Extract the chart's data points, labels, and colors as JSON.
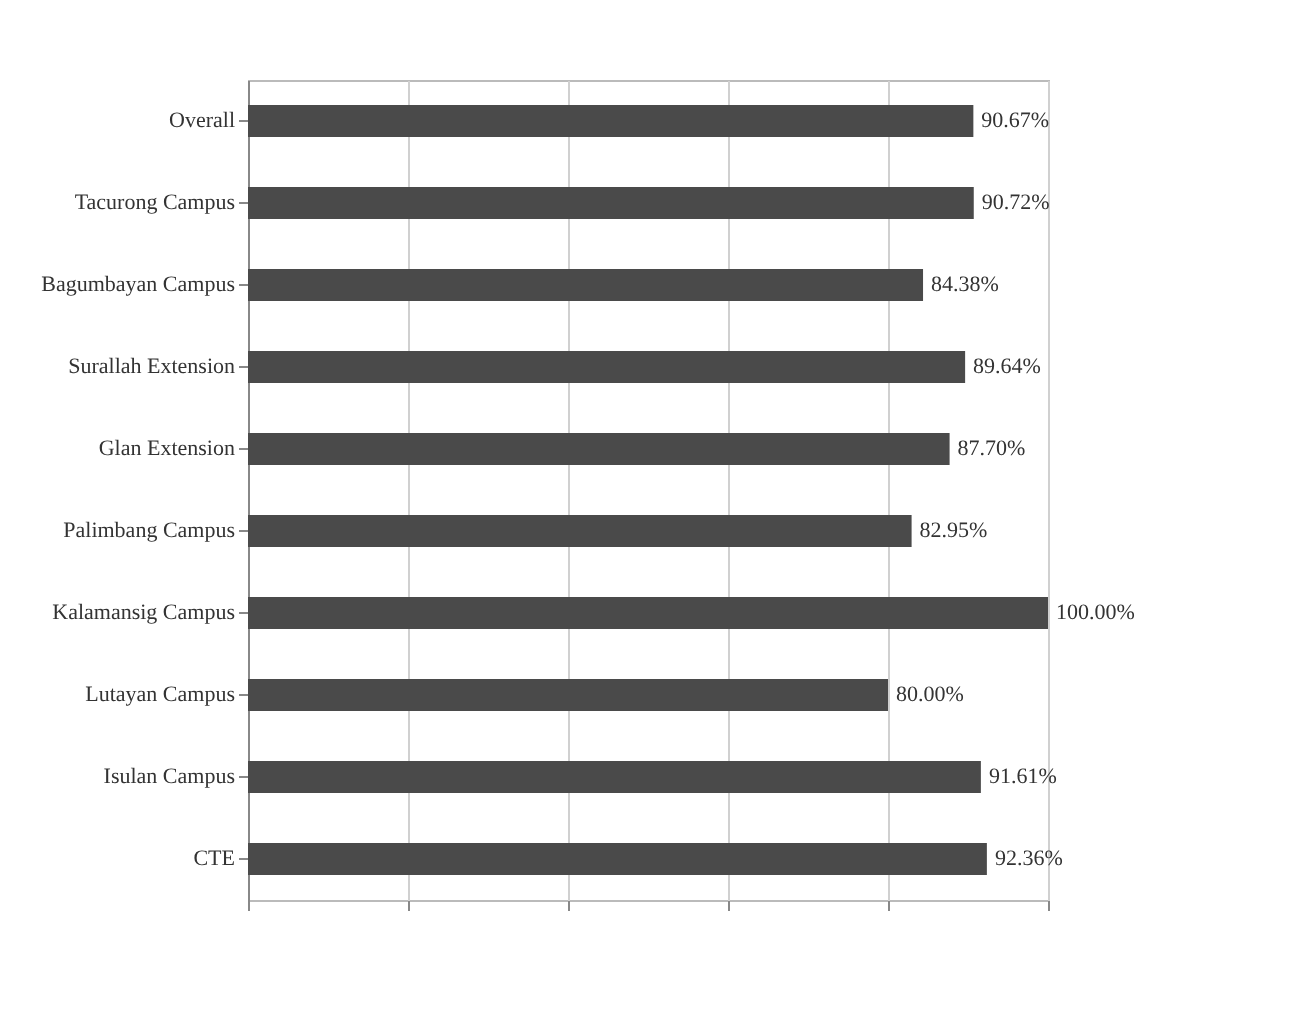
{
  "chart_data": {
    "type": "bar",
    "orientation": "horizontal",
    "categories": [
      "Overall",
      "Tacurong Campus",
      "Bagumbayan Campus",
      "Surallah Extension",
      "Glan Extension",
      "Palimbang Campus",
      "Kalamansig Campus",
      "Lutayan Campus",
      "Isulan Campus",
      "CTE"
    ],
    "values": [
      90.67,
      90.72,
      84.38,
      89.64,
      87.7,
      82.95,
      100.0,
      80.0,
      91.61,
      92.36
    ],
    "value_labels": [
      "90.67%",
      "90.72%",
      "84.38%",
      "89.64%",
      "87.70%",
      "82.95%",
      "100.00%",
      "80.00%",
      "91.61%",
      "92.36%"
    ],
    "color": "#4a4a4a",
    "xlim": [
      0,
      100
    ],
    "xticks": [
      {
        "value": 0,
        "label": null
      },
      {
        "value": 20,
        "label": null
      },
      {
        "value": 40,
        "label": null
      },
      {
        "value": 60,
        "label": null
      },
      {
        "value": 80,
        "label": null
      },
      {
        "value": 100,
        "label": null
      }
    ],
    "grid": "x",
    "tick_labels": "y"
  }
}
